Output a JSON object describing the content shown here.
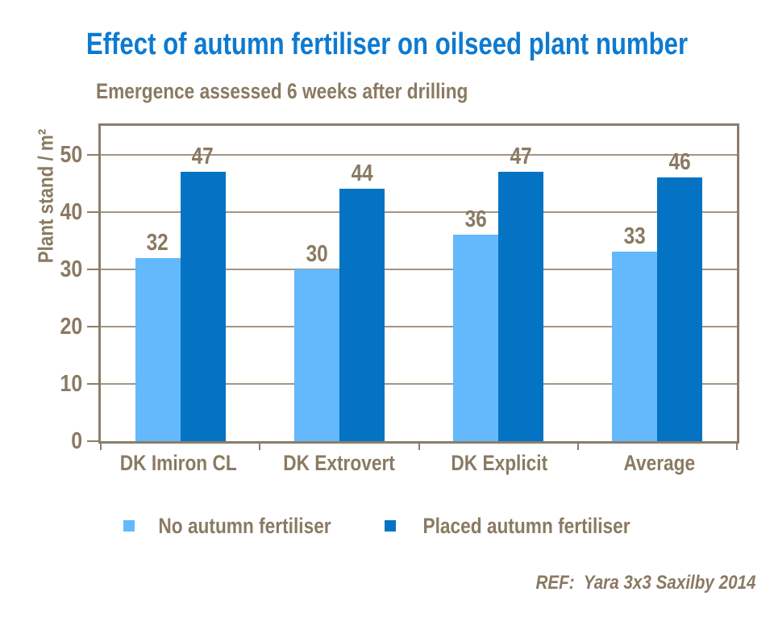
{
  "page": {
    "footer_ref": "REF:  Yara 3x3 Saxilby 2014"
  },
  "colors": {
    "title": "#0d7ad0",
    "text": "#8a7a62",
    "frame": "#8a7d6b",
    "gridline": "#a39581",
    "series_light": "#63b9fb",
    "series_dark": "#0473c3"
  },
  "chart_data": {
    "type": "bar",
    "title": "Effect of autumn fertiliser on oilseed plant number",
    "subtitle": "Emergence assessed 6 weeks after drilling",
    "ylabel": "Plant stand / m²",
    "categories": [
      "DK Imiron CL",
      "DK Extrovert",
      "DK Explicit",
      "Average"
    ],
    "series": [
      {
        "name": "No autumn fertiliser",
        "color": "#63b9fb",
        "values": [
          32,
          30,
          36,
          33
        ]
      },
      {
        "name": "Placed autumn fertiliser",
        "color": "#0473c3",
        "values": [
          47,
          44,
          47,
          46
        ]
      }
    ],
    "yticks": [
      0,
      10,
      20,
      30,
      40,
      50
    ],
    "ylim": [
      0,
      55
    ],
    "grid": true,
    "value_labels": true,
    "legend_position": "bottom",
    "annotation": "REF:  Yara 3x3 Saxilby 2014"
  }
}
